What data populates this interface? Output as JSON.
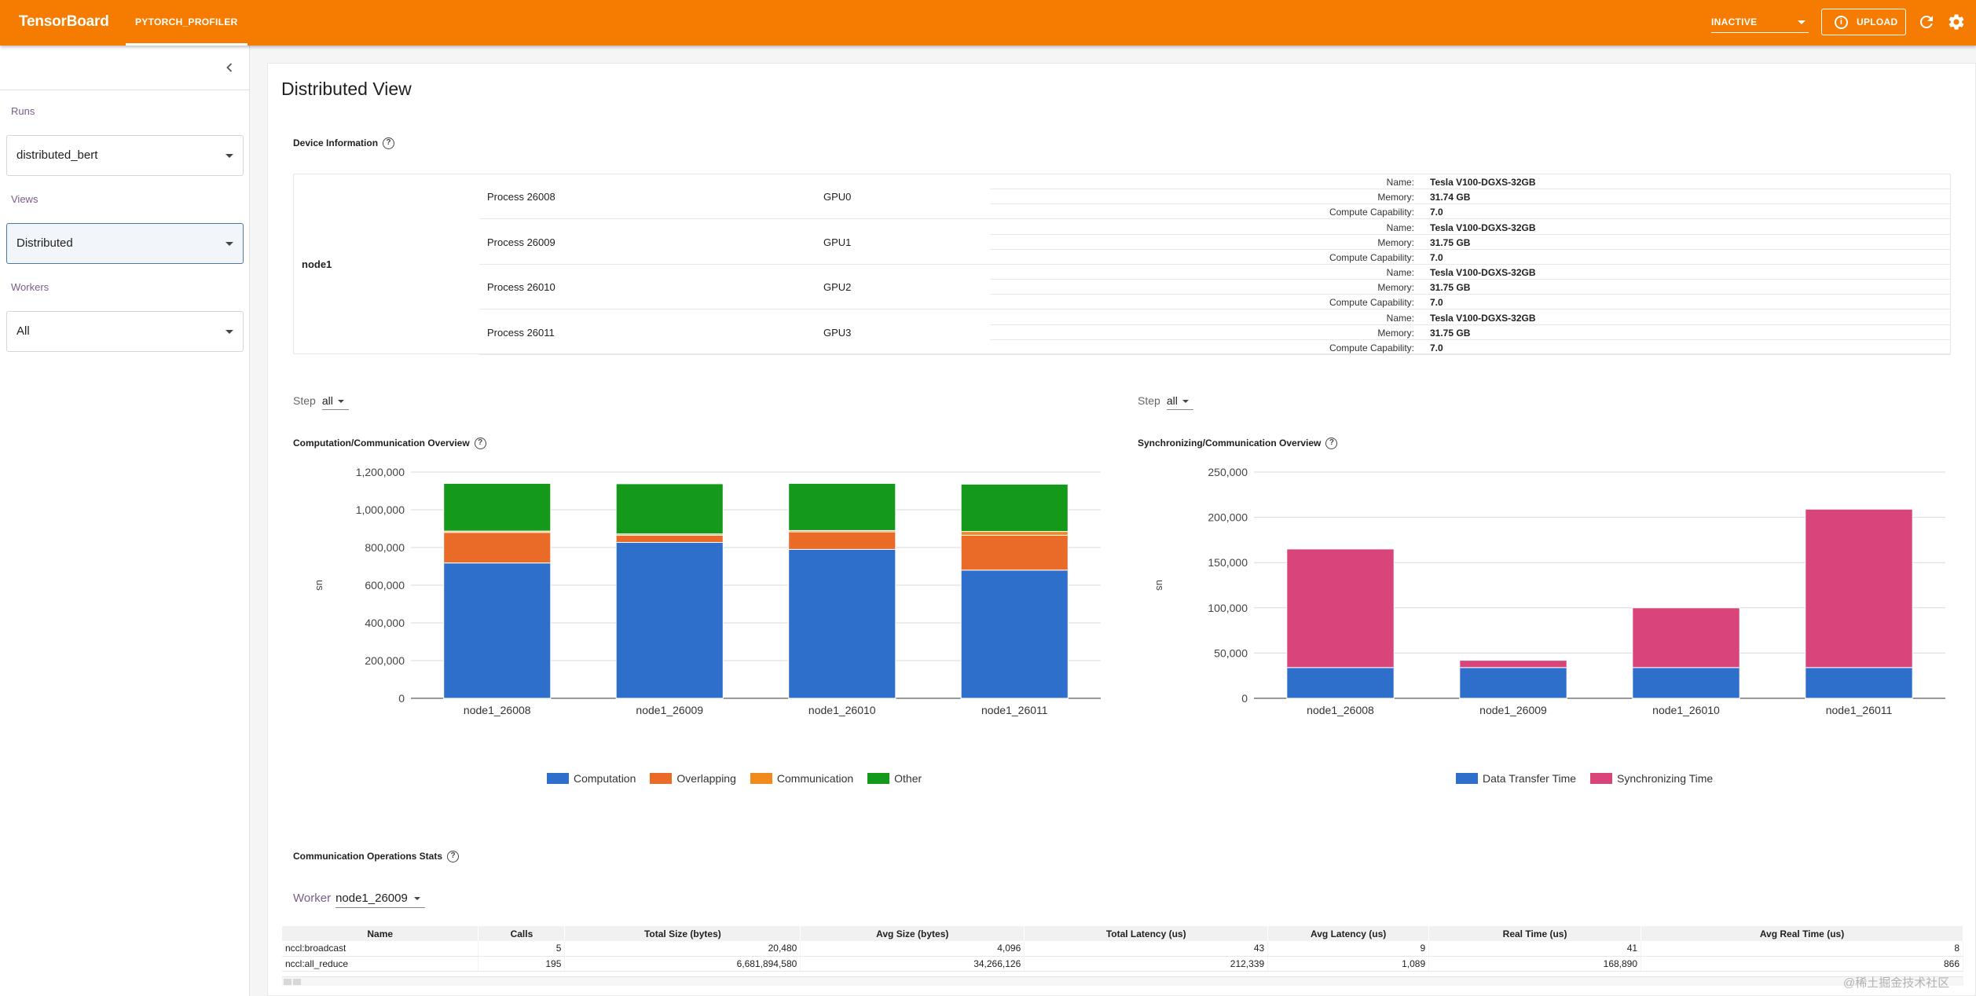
{
  "topbar": {
    "brand": "TensorBoard",
    "plugin_tab": "PYTORCH_PROFILER",
    "reload_state": "INACTIVE",
    "upload_label": "UPLOAD",
    "accent": "#f57c00"
  },
  "sidebar": {
    "runs_label": "Runs",
    "runs_value": "distributed_bert",
    "views_label": "Views",
    "views_value": "Distributed",
    "workers_label": "Workers",
    "workers_value": "All"
  },
  "main": {
    "title": "Distributed View",
    "device_info_title": "Device Information",
    "node": "node1",
    "processes": [
      {
        "process": "Process 26008",
        "gpu": "GPU0",
        "name_key": "Name:",
        "name": "Tesla V100-DGXS-32GB",
        "memory_key": "Memory:",
        "memory": "31.74 GB",
        "cc_key": "Compute Capability:",
        "cc": "7.0"
      },
      {
        "process": "Process 26009",
        "gpu": "GPU1",
        "name_key": "Name:",
        "name": "Tesla V100-DGXS-32GB",
        "memory_key": "Memory:",
        "memory": "31.75 GB",
        "cc_key": "Compute Capability:",
        "cc": "7.0"
      },
      {
        "process": "Process 26010",
        "gpu": "GPU2",
        "name_key": "Name:",
        "name": "Tesla V100-DGXS-32GB",
        "memory_key": "Memory:",
        "memory": "31.75 GB",
        "cc_key": "Compute Capability:",
        "cc": "7.0"
      },
      {
        "process": "Process 26011",
        "gpu": "GPU3",
        "name_key": "Name:",
        "name": "Tesla V100-DGXS-32GB",
        "memory_key": "Memory:",
        "memory": "31.75 GB",
        "cc_key": "Compute Capability:",
        "cc": "7.0"
      }
    ],
    "step_label": "Step",
    "step_value_left": "all",
    "step_value_right": "all",
    "comp_title": "Computation/Communication Overview",
    "sync_title": "Synchronizing/Communication Overview",
    "comm_stats_title": "Communication Operations Stats",
    "worker_label": "Worker",
    "worker_value": "node1_26009",
    "ops_columns": [
      "Name",
      "Calls",
      "Total Size (bytes)",
      "Avg Size (bytes)",
      "Total Latency (us)",
      "Avg Latency (us)",
      "Real Time (us)",
      "Avg Real Time (us)"
    ],
    "ops_rows": [
      [
        "nccl:broadcast",
        "5",
        "20,480",
        "4,096",
        "43",
        "9",
        "41",
        "8"
      ],
      [
        "nccl:all_reduce",
        "195",
        "6,681,894,580",
        "34,266,126",
        "212,339",
        "1,089",
        "168,890",
        "866"
      ]
    ]
  },
  "chart_data": [
    {
      "type": "bar",
      "stacked": true,
      "title": "Computation/Communication Overview",
      "ylabel": "us",
      "categories": [
        "node1_26008",
        "node1_26009",
        "node1_26010",
        "node1_26011"
      ],
      "ylim": [
        0,
        1200000
      ],
      "yticks": [
        "0",
        "200,000",
        "400,000",
        "600,000",
        "800,000",
        "1,000,000",
        "1,200,000"
      ],
      "series": [
        {
          "name": "Computation",
          "color": "#2f6fcc",
          "values": [
            718000,
            827000,
            790000,
            680000
          ]
        },
        {
          "name": "Overlapping",
          "color": "#ea6a28",
          "values": [
            162000,
            38000,
            93000,
            185000
          ]
        },
        {
          "name": "Communication",
          "color": "#f08a1c",
          "values": [
            7000,
            7000,
            7000,
            20000
          ]
        },
        {
          "name": "Other",
          "color": "#15991a",
          "values": [
            253000,
            266000,
            250000,
            251000
          ]
        }
      ],
      "legend_position": "bottom"
    },
    {
      "type": "bar",
      "stacked": true,
      "title": "Synchronizing/Communication Overview",
      "ylabel": "us",
      "categories": [
        "node1_26008",
        "node1_26009",
        "node1_26010",
        "node1_26011"
      ],
      "ylim": [
        0,
        250000
      ],
      "yticks": [
        "0",
        "50,000",
        "100,000",
        "150,000",
        "200,000",
        "250,000"
      ],
      "series": [
        {
          "name": "Data Transfer Time",
          "color": "#2f6fcc",
          "values": [
            34000,
            34000,
            34000,
            34000
          ]
        },
        {
          "name": "Synchronizing Time",
          "color": "#d9447a",
          "values": [
            131000,
            8000,
            66000,
            175000
          ]
        }
      ],
      "legend_position": "bottom"
    }
  ],
  "watermark": "@稀土掘金技术社区"
}
